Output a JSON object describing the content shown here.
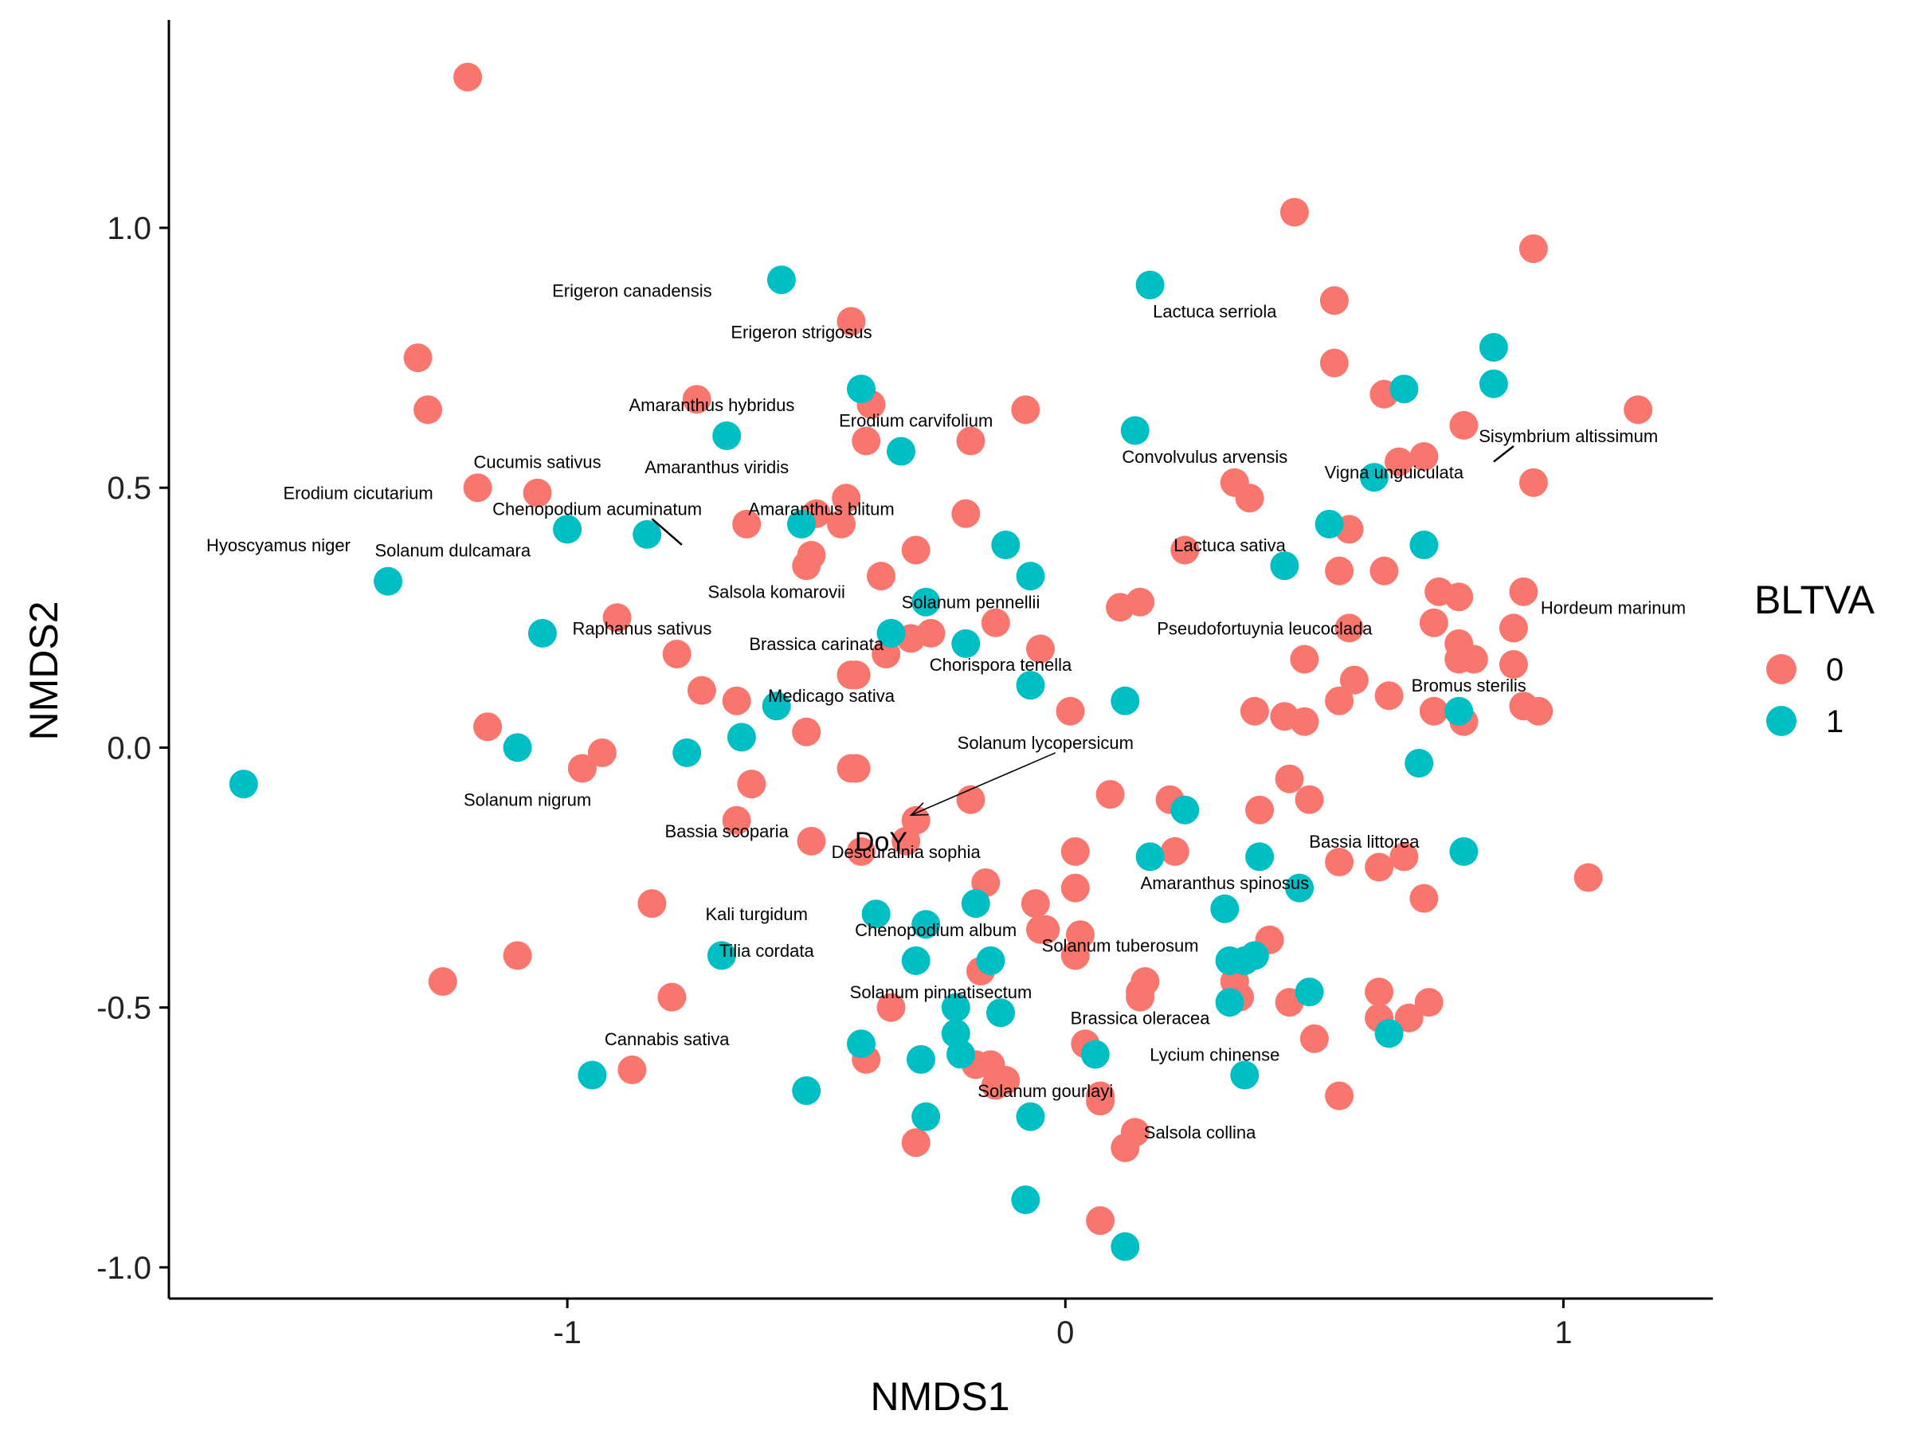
{
  "chart_data": {
    "type": "scatter",
    "title": "",
    "xlabel": "NMDS1",
    "ylabel": "NMDS2",
    "xlim": [
      -1.8,
      1.3
    ],
    "ylim": [
      -1.06,
      1.4
    ],
    "xticks": [
      -1,
      0,
      1
    ],
    "xtick_labels": [
      "-1",
      "0",
      "1"
    ],
    "yticks": [
      -1.0,
      -0.5,
      0.0,
      0.5,
      1.0
    ],
    "ytick_labels": [
      "-1.0",
      "-0.5",
      "0.0",
      "0.5",
      "1.0"
    ],
    "grid": false,
    "legend": {
      "title": "BLTVA",
      "placement": "right",
      "entries": [
        {
          "label": "0",
          "color": "#F8766D"
        },
        {
          "label": "1",
          "color": "#00BFC4"
        }
      ]
    },
    "series": [
      {
        "name": "0",
        "color": "#F8766D",
        "points": [
          [
            -1.2,
            1.29
          ],
          [
            -1.3,
            0.75
          ],
          [
            -1.28,
            0.65
          ],
          [
            -1.18,
            0.5
          ],
          [
            -1.06,
            0.49
          ],
          [
            -1.16,
            0.04
          ],
          [
            -0.97,
            -0.04
          ],
          [
            -0.93,
            -0.01
          ],
          [
            -0.9,
            0.25
          ],
          [
            -0.78,
            0.18
          ],
          [
            -0.73,
            0.11
          ],
          [
            -0.83,
            -0.3
          ],
          [
            -1.1,
            -0.4
          ],
          [
            -1.25,
            -0.45
          ],
          [
            -0.79,
            -0.48
          ],
          [
            -0.87,
            -0.62
          ],
          [
            -0.74,
            0.67
          ],
          [
            -0.64,
            0.43
          ],
          [
            -0.66,
            0.09
          ],
          [
            -0.63,
            -0.07
          ],
          [
            -0.52,
            0.35
          ],
          [
            -0.51,
            0.37
          ],
          [
            -0.43,
            0.82
          ],
          [
            -0.39,
            0.66
          ],
          [
            -0.4,
            0.59
          ],
          [
            -0.44,
            0.48
          ],
          [
            -0.45,
            0.43
          ],
          [
            -0.5,
            0.45
          ],
          [
            -0.37,
            0.33
          ],
          [
            -0.3,
            0.38
          ],
          [
            -0.52,
            0.03
          ],
          [
            -0.43,
            0.14
          ],
          [
            -0.42,
            0.14
          ],
          [
            -0.43,
            -0.04
          ],
          [
            -0.42,
            -0.04
          ],
          [
            -0.66,
            -0.14
          ],
          [
            -0.51,
            -0.18
          ],
          [
            -0.41,
            -0.2
          ],
          [
            -0.3,
            -0.14
          ],
          [
            -0.32,
            -0.18
          ],
          [
            -0.36,
            0.18
          ],
          [
            -0.31,
            0.21
          ],
          [
            -0.27,
            0.22
          ],
          [
            -0.2,
            0.45
          ],
          [
            -0.14,
            0.24
          ],
          [
            -0.19,
            0.59
          ],
          [
            -0.08,
            0.65
          ],
          [
            -0.05,
            0.19
          ],
          [
            -0.19,
            -0.1
          ],
          [
            -0.16,
            -0.26
          ],
          [
            -0.06,
            -0.3
          ],
          [
            -0.05,
            -0.35
          ],
          [
            -0.04,
            -0.35
          ],
          [
            0.01,
            0.07
          ],
          [
            0.02,
            -0.2
          ],
          [
            0.02,
            -0.27
          ],
          [
            0.02,
            -0.4
          ],
          [
            0.03,
            -0.36
          ],
          [
            0.09,
            -0.09
          ],
          [
            0.11,
            0.27
          ],
          [
            0.15,
            0.28
          ],
          [
            0.21,
            -0.1
          ],
          [
            0.22,
            -0.2
          ],
          [
            0.24,
            0.38
          ],
          [
            0.16,
            -0.45
          ],
          [
            0.15,
            -0.47
          ],
          [
            0.15,
            -0.48
          ],
          [
            0.04,
            -0.57
          ],
          [
            0.07,
            -0.67
          ],
          [
            0.07,
            -0.68
          ],
          [
            0.14,
            -0.74
          ],
          [
            0.12,
            -0.77
          ],
          [
            0.07,
            -0.91
          ],
          [
            -0.4,
            -0.6
          ],
          [
            -0.35,
            -0.5
          ],
          [
            -0.17,
            -0.43
          ],
          [
            -0.18,
            -0.61
          ],
          [
            -0.15,
            -0.61
          ],
          [
            -0.12,
            -0.64
          ],
          [
            -0.14,
            -0.65
          ],
          [
            -0.3,
            -0.76
          ],
          [
            0.34,
            0.51
          ],
          [
            0.37,
            0.48
          ],
          [
            0.46,
            1.03
          ],
          [
            0.54,
            0.86
          ],
          [
            0.54,
            0.74
          ],
          [
            0.64,
            0.68
          ],
          [
            0.64,
            0.34
          ],
          [
            0.55,
            0.34
          ],
          [
            0.57,
            0.42
          ],
          [
            0.57,
            0.23
          ],
          [
            0.58,
            0.13
          ],
          [
            0.55,
            0.09
          ],
          [
            0.48,
            0.17
          ],
          [
            0.38,
            0.07
          ],
          [
            0.44,
            0.06
          ],
          [
            0.39,
            -0.12
          ],
          [
            0.45,
            -0.06
          ],
          [
            0.49,
            -0.1
          ],
          [
            0.41,
            -0.37
          ],
          [
            0.34,
            -0.45
          ],
          [
            0.35,
            -0.48
          ],
          [
            0.45,
            -0.49
          ],
          [
            0.5,
            -0.56
          ],
          [
            0.55,
            -0.67
          ],
          [
            0.63,
            -0.47
          ],
          [
            0.63,
            -0.52
          ],
          [
            0.69,
            -0.52
          ],
          [
            0.73,
            -0.49
          ],
          [
            0.67,
            0.55
          ],
          [
            0.72,
            0.56
          ],
          [
            0.8,
            0.62
          ],
          [
            0.94,
            0.96
          ],
          [
            0.94,
            0.51
          ],
          [
            1.15,
            0.65
          ],
          [
            0.92,
            0.3
          ],
          [
            0.9,
            0.23
          ],
          [
            0.9,
            0.16
          ],
          [
            0.75,
            0.3
          ],
          [
            0.74,
            0.24
          ],
          [
            0.79,
            0.29
          ],
          [
            0.79,
            0.2
          ],
          [
            0.79,
            0.17
          ],
          [
            0.82,
            0.17
          ],
          [
            0.92,
            0.08
          ],
          [
            0.95,
            0.07
          ],
          [
            0.74,
            0.07
          ],
          [
            0.8,
            0.05
          ],
          [
            0.65,
            0.1
          ],
          [
            0.68,
            -0.21
          ],
          [
            0.63,
            -0.23
          ],
          [
            0.72,
            -0.29
          ],
          [
            1.05,
            -0.25
          ],
          [
            0.55,
            -0.22
          ],
          [
            0.48,
            0.05
          ]
        ]
      },
      {
        "name": "1",
        "color": "#00BFC4",
        "points": [
          [
            -1.65,
            -0.07
          ],
          [
            -1.36,
            0.32
          ],
          [
            -1.1,
            0.0
          ],
          [
            -1.05,
            0.22
          ],
          [
            -1.0,
            0.42
          ],
          [
            -0.84,
            0.41
          ],
          [
            -0.95,
            -0.63
          ],
          [
            -0.68,
            0.6
          ],
          [
            -0.57,
            0.9
          ],
          [
            -0.53,
            0.43
          ],
          [
            -0.58,
            0.08
          ],
          [
            -0.65,
            0.02
          ],
          [
            -0.76,
            -0.01
          ],
          [
            -0.69,
            -0.4
          ],
          [
            -0.52,
            -0.66
          ],
          [
            -0.41,
            0.69
          ],
          [
            -0.33,
            0.57
          ],
          [
            -0.35,
            0.22
          ],
          [
            -0.28,
            0.28
          ],
          [
            -0.2,
            0.2
          ],
          [
            -0.12,
            0.39
          ],
          [
            -0.07,
            0.33
          ],
          [
            -0.07,
            0.12
          ],
          [
            -0.38,
            -0.32
          ],
          [
            -0.28,
            -0.34
          ],
          [
            -0.3,
            -0.41
          ],
          [
            -0.18,
            -0.3
          ],
          [
            -0.15,
            -0.41
          ],
          [
            -0.13,
            -0.51
          ],
          [
            -0.22,
            -0.5
          ],
          [
            -0.22,
            -0.55
          ],
          [
            -0.21,
            -0.59
          ],
          [
            -0.29,
            -0.6
          ],
          [
            -0.41,
            -0.57
          ],
          [
            -0.28,
            -0.71
          ],
          [
            -0.07,
            -0.71
          ],
          [
            -0.08,
            -0.87
          ],
          [
            0.14,
            0.61
          ],
          [
            0.12,
            0.09
          ],
          [
            0.17,
            0.89
          ],
          [
            0.17,
            -0.21
          ],
          [
            0.24,
            -0.12
          ],
          [
            0.06,
            -0.59
          ],
          [
            0.12,
            -0.96
          ],
          [
            0.32,
            -0.31
          ],
          [
            0.33,
            -0.41
          ],
          [
            0.36,
            -0.41
          ],
          [
            0.38,
            -0.4
          ],
          [
            0.33,
            -0.49
          ],
          [
            0.36,
            -0.63
          ],
          [
            0.39,
            -0.21
          ],
          [
            0.47,
            -0.27
          ],
          [
            0.49,
            -0.47
          ],
          [
            0.44,
            0.35
          ],
          [
            0.53,
            0.43
          ],
          [
            0.62,
            0.52
          ],
          [
            0.68,
            0.69
          ],
          [
            0.86,
            0.77
          ],
          [
            0.86,
            0.7
          ],
          [
            0.72,
            0.39
          ],
          [
            0.79,
            0.07
          ],
          [
            0.71,
            -0.03
          ],
          [
            0.65,
            -0.55
          ],
          [
            0.8,
            -0.2
          ]
        ]
      }
    ],
    "species_labels": [
      {
        "text": "Erigeron canadensis",
        "x": -0.87,
        "y": 0.88
      },
      {
        "text": "Erigeron strigosus",
        "x": -0.53,
        "y": 0.8
      },
      {
        "text": "Amaranthus hybridus",
        "x": -0.71,
        "y": 0.66
      },
      {
        "text": "Erodium carvifolium",
        "x": -0.3,
        "y": 0.63
      },
      {
        "text": "Cucumis sativus",
        "x": -1.06,
        "y": 0.55
      },
      {
        "text": "Amaranthus viridis",
        "x": -0.7,
        "y": 0.54
      },
      {
        "text": "Erodium cicutarium",
        "x": -1.42,
        "y": 0.49
      },
      {
        "text": "Chenopodium acuminatum",
        "x": -0.94,
        "y": 0.46
      },
      {
        "text": "Amaranthus blitum",
        "x": -0.49,
        "y": 0.46
      },
      {
        "text": "Hyoscyamus niger",
        "x": -1.58,
        "y": 0.39
      },
      {
        "text": "Solanum dulcamara",
        "x": -1.23,
        "y": 0.38
      },
      {
        "text": "Salsola komarovii",
        "x": -0.58,
        "y": 0.3
      },
      {
        "text": "Solanum pennellii",
        "x": -0.19,
        "y": 0.28
      },
      {
        "text": "Raphanus sativus",
        "x": -0.85,
        "y": 0.23
      },
      {
        "text": "Brassica carinata",
        "x": -0.5,
        "y": 0.2
      },
      {
        "text": "Chorispora tenella",
        "x": -0.13,
        "y": 0.16
      },
      {
        "text": "Medicago sativa",
        "x": -0.47,
        "y": 0.1
      },
      {
        "text": "Solanum lycopersicum",
        "x": -0.04,
        "y": 0.01
      },
      {
        "text": "Solanum nigrum",
        "x": -1.08,
        "y": -0.1
      },
      {
        "text": "Bassia scoparia",
        "x": -0.68,
        "y": -0.16
      },
      {
        "text": "Descurainia sophia",
        "x": -0.32,
        "y": -0.2
      },
      {
        "text": "Kali turgidum",
        "x": -0.62,
        "y": -0.32
      },
      {
        "text": "Chenopodium album",
        "x": -0.26,
        "y": -0.35
      },
      {
        "text": "Tilia cordata",
        "x": -0.6,
        "y": -0.39
      },
      {
        "text": "Solanum tuberosum",
        "x": 0.11,
        "y": -0.38
      },
      {
        "text": "Solanum pinnatisectum",
        "x": -0.25,
        "y": -0.47
      },
      {
        "text": "Brassica oleracea",
        "x": 0.15,
        "y": -0.52
      },
      {
        "text": "Cannabis sativa",
        "x": -0.8,
        "y": -0.56
      },
      {
        "text": "Lycium chinense",
        "x": 0.3,
        "y": -0.59
      },
      {
        "text": "Solanum gourlayi",
        "x": -0.04,
        "y": -0.66
      },
      {
        "text": "Salsola collina",
        "x": 0.27,
        "y": -0.74
      },
      {
        "text": "Lactuca serriola",
        "x": 0.3,
        "y": 0.84
      },
      {
        "text": "Convolvulus arvensis",
        "x": 0.28,
        "y": 0.56
      },
      {
        "text": "Sisymbrium altissimum",
        "x": 1.01,
        "y": 0.6
      },
      {
        "text": "Vigna unguiculata",
        "x": 0.66,
        "y": 0.53
      },
      {
        "text": "Lactuca sativa",
        "x": 0.33,
        "y": 0.39
      },
      {
        "text": "Hordeum marinum",
        "x": 1.1,
        "y": 0.27
      },
      {
        "text": "Pseudofortuynia leucocladа",
        "x": 0.4,
        "y": 0.23
      },
      {
        "text": "Bromus sterilis",
        "x": 0.81,
        "y": 0.12
      },
      {
        "text": "Bassia littorea",
        "x": 0.6,
        "y": -0.18
      },
      {
        "text": "Amaranthus spinosus",
        "x": 0.32,
        "y": -0.26
      }
    ],
    "vector": {
      "label": "DoY",
      "from": [
        -0.02,
        -0.01
      ],
      "to": [
        -0.31,
        -0.13
      ],
      "label_at": [
        -0.37,
        -0.18
      ]
    },
    "leader_lines": [
      {
        "from": [
          -0.83,
          0.44
        ],
        "to": [
          -0.77,
          0.39
        ]
      },
      {
        "from": [
          0.86,
          0.55
        ],
        "to": [
          0.9,
          0.58
        ]
      }
    ]
  }
}
